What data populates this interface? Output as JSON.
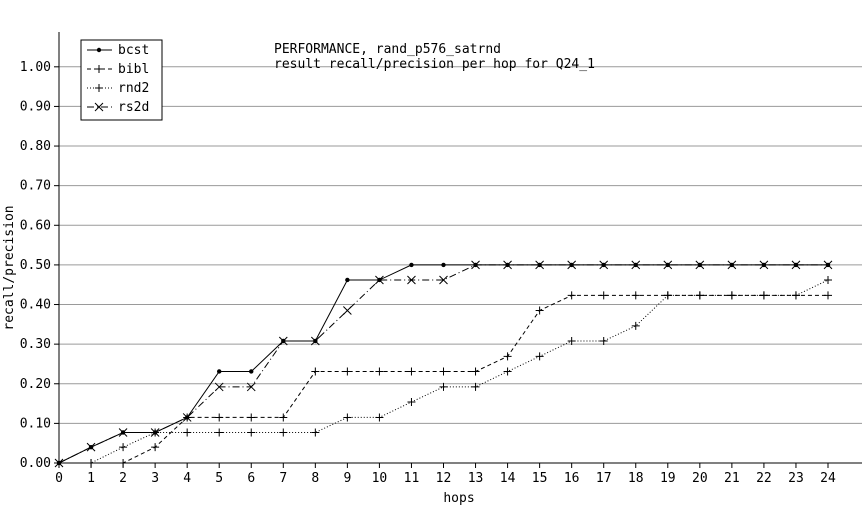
{
  "chart_data": {
    "type": "line",
    "title": "PERFORMANCE, rand_p576_satrnd",
    "subtitle": "result recall/precision per hop for Q24_1",
    "xlabel": "hops",
    "ylabel": "recall/precision",
    "xlim": [
      0,
      24
    ],
    "ylim": [
      0,
      1.05
    ],
    "x_ticks": [
      0,
      1,
      2,
      3,
      4,
      5,
      6,
      7,
      8,
      9,
      10,
      11,
      12,
      13,
      14,
      15,
      16,
      17,
      18,
      19,
      20,
      21,
      22,
      23,
      24
    ],
    "y_ticks": [
      0.0,
      0.1,
      0.2,
      0.3,
      0.4,
      0.5,
      0.6,
      0.7,
      0.8,
      0.9,
      1.0
    ],
    "y_tick_labels": [
      "0.00",
      "0.10",
      "0.20",
      "0.30",
      "0.40",
      "0.50",
      "0.60",
      "0.70",
      "0.80",
      "0.90",
      "1.00"
    ],
    "grid": "horizontal",
    "legend_position": "top-left",
    "x": [
      0,
      1,
      2,
      3,
      4,
      5,
      6,
      7,
      8,
      9,
      10,
      11,
      12,
      13,
      14,
      15,
      16,
      17,
      18,
      19,
      20,
      21,
      22,
      23,
      24
    ],
    "series": [
      {
        "name": "bcst",
        "marker": "dot",
        "dash": "solid",
        "values": [
          0.0,
          0.04,
          0.077,
          0.077,
          0.115,
          0.231,
          0.231,
          0.308,
          0.308,
          0.462,
          0.462,
          0.5,
          0.5,
          0.5,
          0.5,
          0.5,
          0.5,
          0.5,
          0.5,
          0.5,
          0.5,
          0.5,
          0.5,
          0.5,
          0.5
        ]
      },
      {
        "name": "bibl",
        "marker": "plus",
        "dash": "dashed",
        "values": [
          0.0,
          0.0,
          0.0,
          0.04,
          0.115,
          0.115,
          0.115,
          0.115,
          0.231,
          0.231,
          0.231,
          0.231,
          0.231,
          0.231,
          0.269,
          0.385,
          0.423,
          0.423,
          0.423,
          0.423,
          0.423,
          0.423,
          0.423,
          0.423,
          0.423
        ]
      },
      {
        "name": "rnd2",
        "marker": "plus",
        "dash": "dotted",
        "values": [
          0.0,
          0.0,
          0.04,
          0.077,
          0.077,
          0.077,
          0.077,
          0.077,
          0.077,
          0.115,
          0.115,
          0.154,
          0.192,
          0.192,
          0.231,
          0.269,
          0.308,
          0.308,
          0.346,
          0.423,
          0.423,
          0.423,
          0.423,
          0.423,
          0.462
        ]
      },
      {
        "name": "rs2d",
        "marker": "cross",
        "dash": "dashdot",
        "values": [
          0.0,
          0.04,
          0.077,
          0.077,
          0.115,
          0.192,
          0.192,
          0.308,
          0.308,
          0.385,
          0.462,
          0.462,
          0.462,
          0.5,
          0.5,
          0.5,
          0.5,
          0.5,
          0.5,
          0.5,
          0.5,
          0.5,
          0.5,
          0.5,
          0.5
        ]
      }
    ]
  }
}
